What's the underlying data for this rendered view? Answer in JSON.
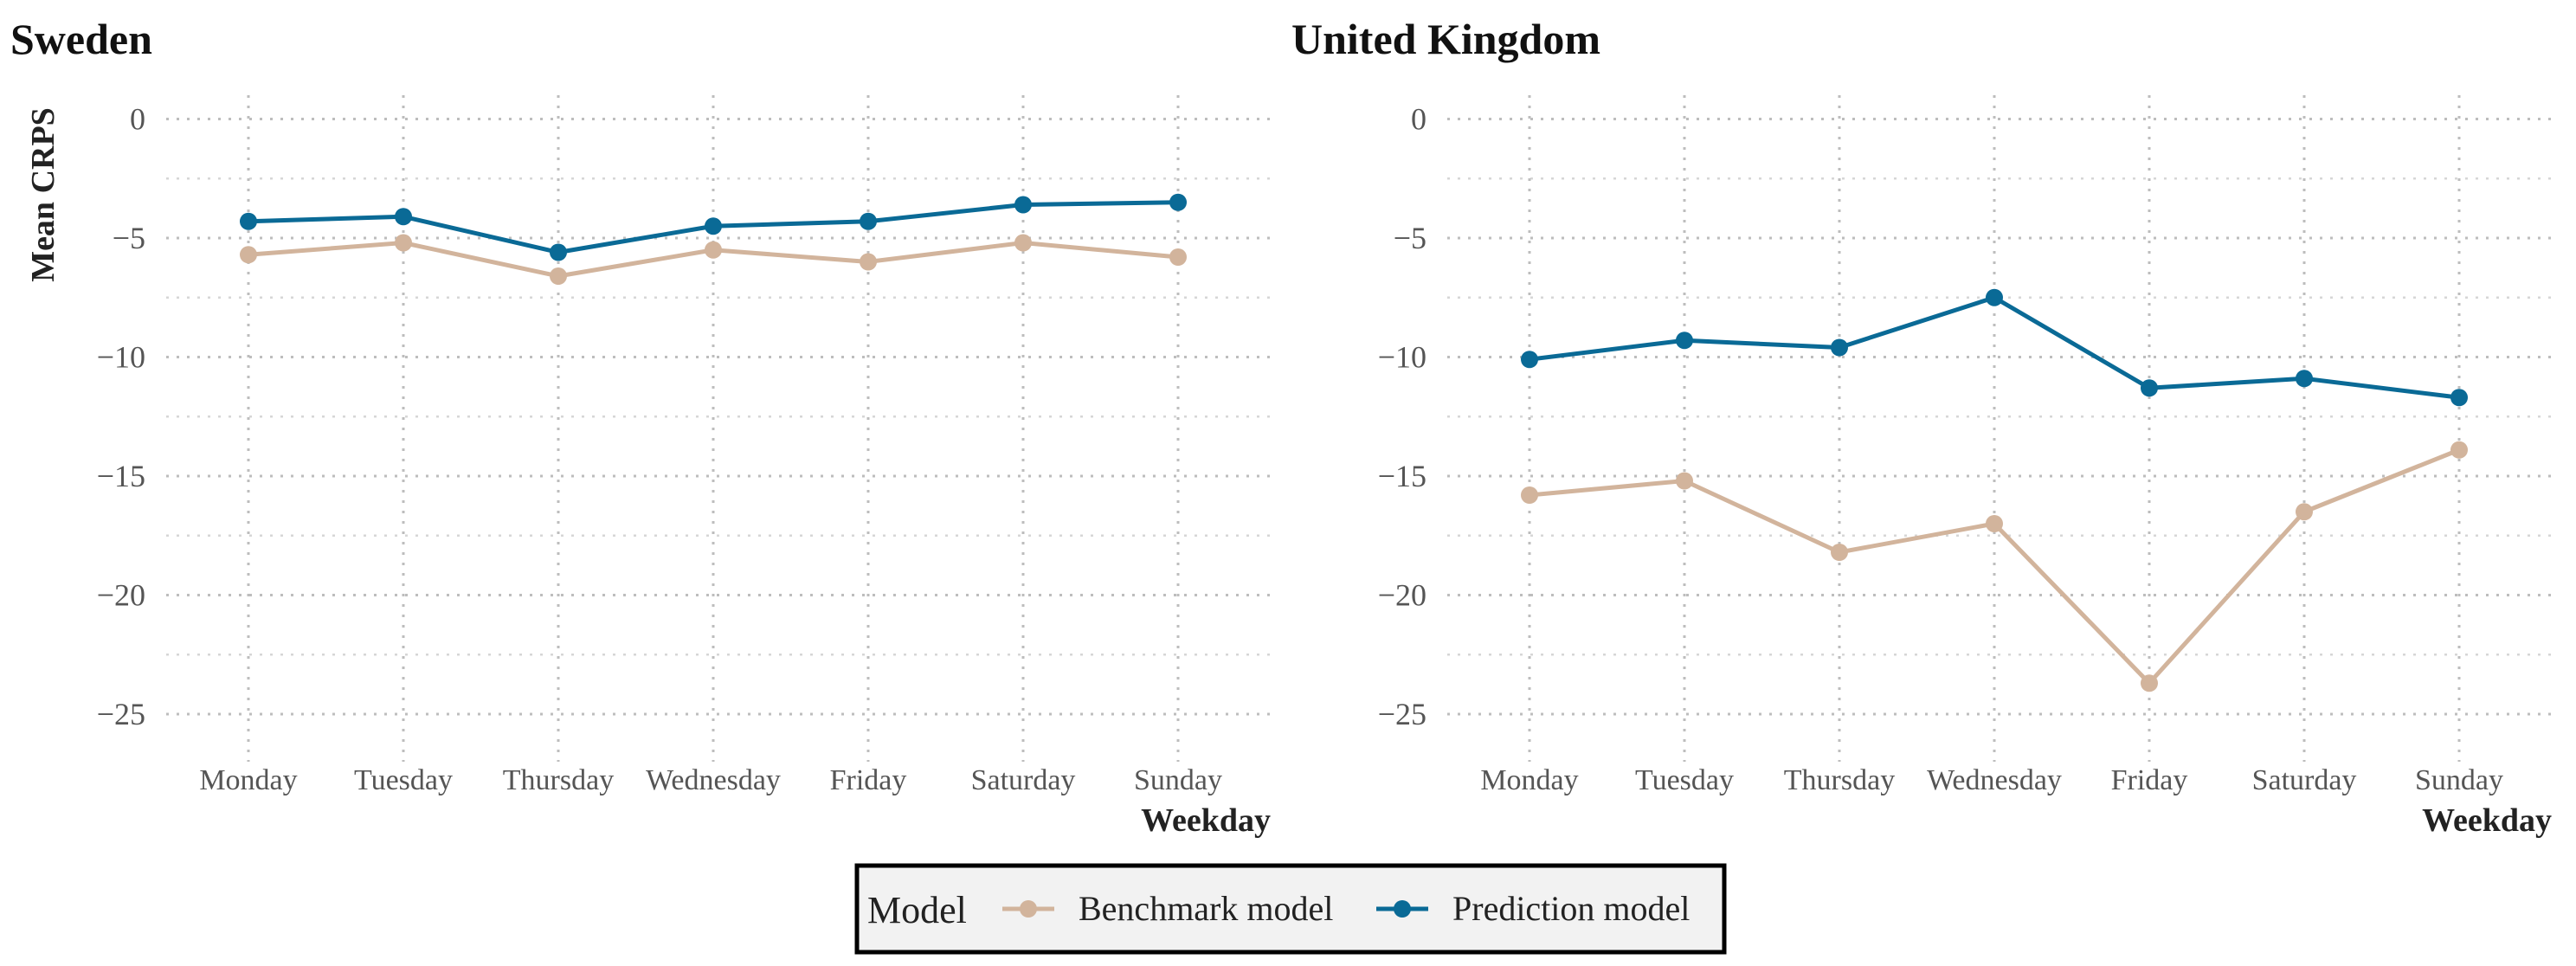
{
  "chart_data": [
    {
      "type": "line",
      "title": "Sweden",
      "xlabel": "Weekday",
      "ylabel": "Mean CRPS",
      "categories": [
        "Monday",
        "Tuesday",
        "Thursday",
        "Wednesday",
        "Friday",
        "Saturday",
        "Sunday"
      ],
      "ylim": [
        -27,
        1
      ],
      "yticks": [
        0,
        -5,
        -10,
        -15,
        -20,
        -25
      ],
      "yticks_labels": [
        "0",
        "−5",
        "−10",
        "−15",
        "−20",
        "−25"
      ],
      "grid": true,
      "series": [
        {
          "name": "Benchmark model",
          "color": "#d2b49c",
          "values": [
            -5.7,
            -5.2,
            -6.6,
            -5.5,
            -6.0,
            -5.2,
            -5.8
          ]
        },
        {
          "name": "Prediction model",
          "color": "#0a6a96",
          "values": [
            -4.3,
            -4.1,
            -5.6,
            -4.5,
            -4.3,
            -3.6,
            -3.5
          ]
        }
      ]
    },
    {
      "type": "line",
      "title": "United Kingdom",
      "xlabel": "Weekday",
      "ylabel": "",
      "categories": [
        "Monday",
        "Tuesday",
        "Thursday",
        "Wednesday",
        "Friday",
        "Saturday",
        "Sunday"
      ],
      "ylim": [
        -27,
        1
      ],
      "yticks": [
        0,
        -5,
        -10,
        -15,
        -20,
        -25
      ],
      "yticks_labels": [
        "0",
        "−5",
        "−10",
        "−15",
        "−20",
        "−25"
      ],
      "grid": true,
      "series": [
        {
          "name": "Benchmark model",
          "color": "#d2b49c",
          "values": [
            -15.8,
            -15.2,
            -18.2,
            -17.0,
            -23.7,
            -16.5,
            -13.9
          ]
        },
        {
          "name": "Prediction model",
          "color": "#0a6a96",
          "values": [
            -10.1,
            -9.3,
            -9.6,
            -7.5,
            -11.3,
            -10.9,
            -11.7
          ]
        }
      ]
    }
  ],
  "legend": {
    "title": "Model",
    "position": "bottom",
    "items": [
      {
        "label": "Benchmark model",
        "color": "#d2b49c"
      },
      {
        "label": "Prediction model",
        "color": "#0a6a96"
      }
    ]
  }
}
